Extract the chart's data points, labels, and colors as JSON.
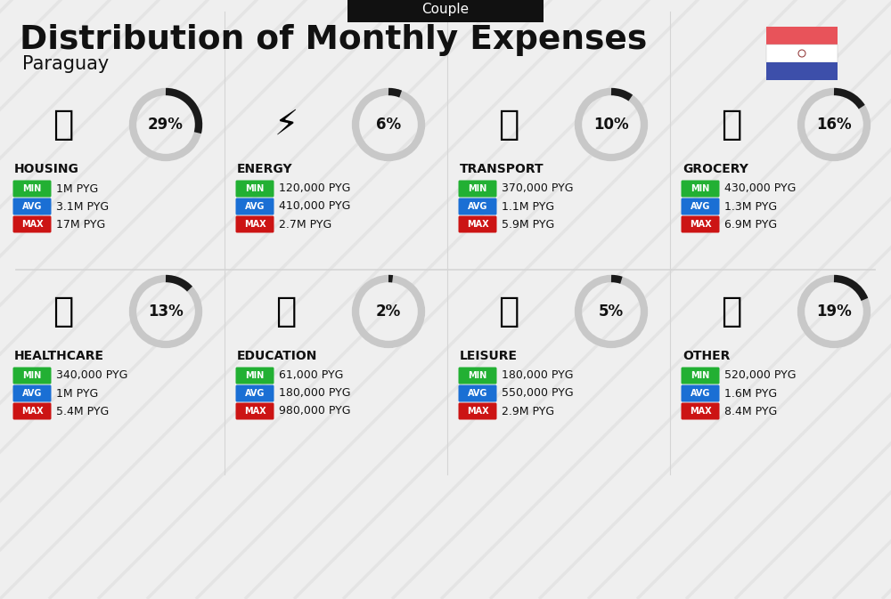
{
  "title": "Distribution of Monthly Expenses",
  "subtitle": "Paraguay",
  "header_label": "Couple",
  "background_color": "#efefef",
  "categories": [
    {
      "name": "HOUSING",
      "pct": 29,
      "min": "1M PYG",
      "avg": "3.1M PYG",
      "max": "17M PYG",
      "col": 0,
      "row": 0
    },
    {
      "name": "ENERGY",
      "pct": 6,
      "min": "120,000 PYG",
      "avg": "410,000 PYG",
      "max": "2.7M PYG",
      "col": 1,
      "row": 0
    },
    {
      "name": "TRANSPORT",
      "pct": 10,
      "min": "370,000 PYG",
      "avg": "1.1M PYG",
      "max": "5.9M PYG",
      "col": 2,
      "row": 0
    },
    {
      "name": "GROCERY",
      "pct": 16,
      "min": "430,000 PYG",
      "avg": "1.3M PYG",
      "max": "6.9M PYG",
      "col": 3,
      "row": 0
    },
    {
      "name": "HEALTHCARE",
      "pct": 13,
      "min": "340,000 PYG",
      "avg": "1M PYG",
      "max": "5.4M PYG",
      "col": 0,
      "row": 1
    },
    {
      "name": "EDUCATION",
      "pct": 2,
      "min": "61,000 PYG",
      "avg": "180,000 PYG",
      "max": "980,000 PYG",
      "col": 1,
      "row": 1
    },
    {
      "name": "LEISURE",
      "pct": 5,
      "min": "180,000 PYG",
      "avg": "550,000 PYG",
      "max": "2.9M PYG",
      "col": 2,
      "row": 1
    },
    {
      "name": "OTHER",
      "pct": 19,
      "min": "520,000 PYG",
      "avg": "1.6M PYG",
      "max": "8.4M PYG",
      "col": 3,
      "row": 1
    }
  ],
  "min_color": "#22b033",
  "avg_color": "#1a6fd4",
  "max_color": "#cc1414",
  "arc_active_color": "#1a1a1a",
  "arc_bg_color": "#c8c8c8",
  "stripe_color": "#e0e0e0",
  "flag_red": "#e8535a",
  "flag_blue": "#3d4faa",
  "flag_white": "#ffffff",
  "col_divider_color": "#d5d5d5",
  "row_divider_color": "#d5d5d5"
}
